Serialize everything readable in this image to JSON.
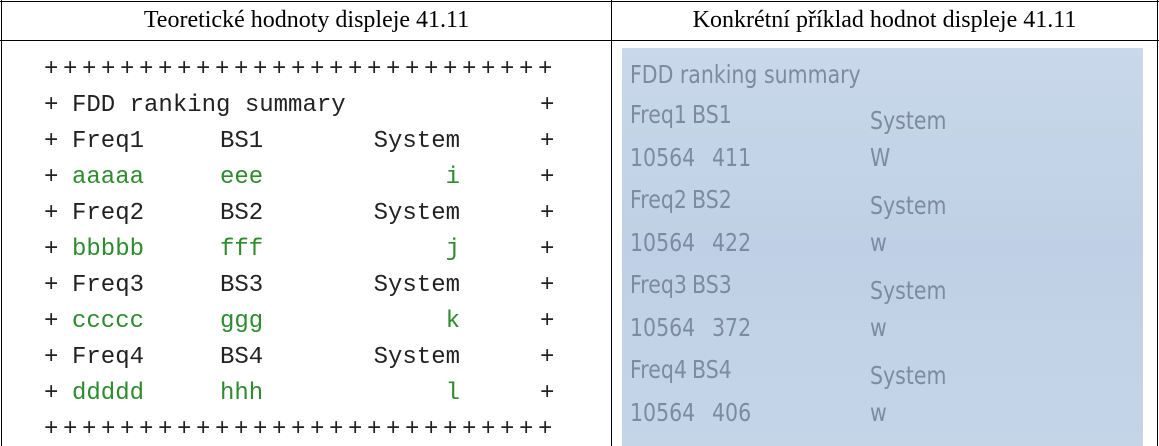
{
  "headers": [
    "Teoretické hodnoty displeje 41.11",
    "Konkrétní příklad hodnot displeje 41.11"
  ],
  "template": {
    "border": "+++++++++++++++++++++++++++",
    "rows": [
      {
        "cells": [
          "+",
          "FDD ranking summary",
          "",
          "",
          "+"
        ],
        "highlight": false
      },
      {
        "cells": [
          "+",
          "Freq1",
          "BS1",
          "System",
          "+"
        ],
        "highlight": false
      },
      {
        "cells": [
          "+",
          "aaaaa",
          "eee",
          "i",
          "+"
        ],
        "highlight": true
      },
      {
        "cells": [
          "+",
          "Freq2",
          "BS2",
          "System",
          "+"
        ],
        "highlight": false
      },
      {
        "cells": [
          "+",
          "bbbbb",
          "fff",
          "j",
          "+"
        ],
        "highlight": true
      },
      {
        "cells": [
          "+",
          "Freq3",
          "BS3",
          "System",
          "+"
        ],
        "highlight": false
      },
      {
        "cells": [
          "+",
          "ccccc",
          "ggg",
          "k",
          "+"
        ],
        "highlight": true
      },
      {
        "cells": [
          "+",
          "Freq4",
          "BS4",
          "System",
          "+"
        ],
        "highlight": false
      },
      {
        "cells": [
          "+",
          "ddddd",
          "hhh",
          "l",
          "+"
        ],
        "highlight": true
      }
    ]
  },
  "example": {
    "title": "FDD ranking summary",
    "rows": [
      [
        "Freq1",
        "BS1",
        "System"
      ],
      [
        "10564",
        "411",
        "W"
      ],
      [
        "Freq2",
        "BS2",
        "System"
      ],
      [
        "10564",
        "422",
        "w"
      ],
      [
        "Freq3",
        "BS3",
        "System"
      ],
      [
        "10564",
        "372",
        "w"
      ],
      [
        "Freq4",
        "BS4",
        "System"
      ],
      [
        "10564",
        "406",
        "w"
      ]
    ]
  }
}
